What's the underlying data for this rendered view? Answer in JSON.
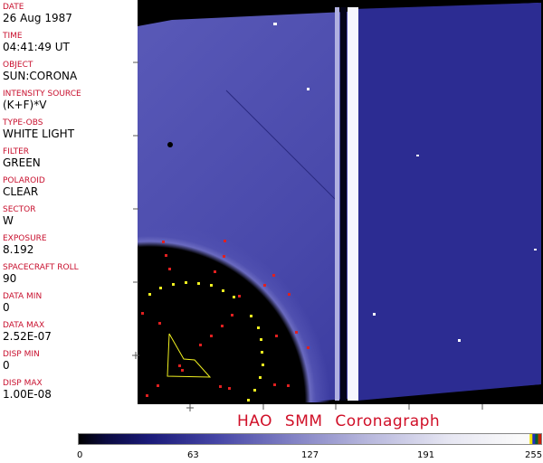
{
  "header_fields": [
    {
      "label": "DATE",
      "value": "26 Aug 1987"
    },
    {
      "label": "TIME",
      "value": "04:41:49 UT"
    },
    {
      "label": "OBJECT",
      "value": "SUN:CORONA"
    },
    {
      "label": "INTENSITY SOURCE",
      "value": "(K+F)*V"
    },
    {
      "label": "TYPE-OBS",
      "value": "WHITE LIGHT"
    },
    {
      "label": "FILTER",
      "value": "GREEN"
    },
    {
      "label": "POLAROID",
      "value": "CLEAR"
    },
    {
      "label": "SECTOR",
      "value": "W"
    },
    {
      "label": "EXPOSURE",
      "value": "8.192"
    },
    {
      "label": "SPACECRAFT ROLL",
      "value": "90"
    },
    {
      "label": "DATA MIN",
      "value": "0"
    },
    {
      "label": "DATA MAX",
      "value": "2.52E-07"
    },
    {
      "label": "DISP MIN",
      "value": "0"
    },
    {
      "label": "DISP MAX",
      "value": "1.00E-08"
    }
  ],
  "title": "HAO SMM Coronagraph",
  "colorbar": {
    "ticks": [
      "0",
      "63",
      "127",
      "191",
      "255"
    ],
    "colormap_colors": [
      "#000000",
      "#1a1a78",
      "#7d7dc2",
      "#fafafa"
    ]
  },
  "colors": {
    "label": "#c8102e",
    "corona": "#3c3ca0",
    "marker_red": "#e02020",
    "marker_yellow": "#f0f020"
  }
}
